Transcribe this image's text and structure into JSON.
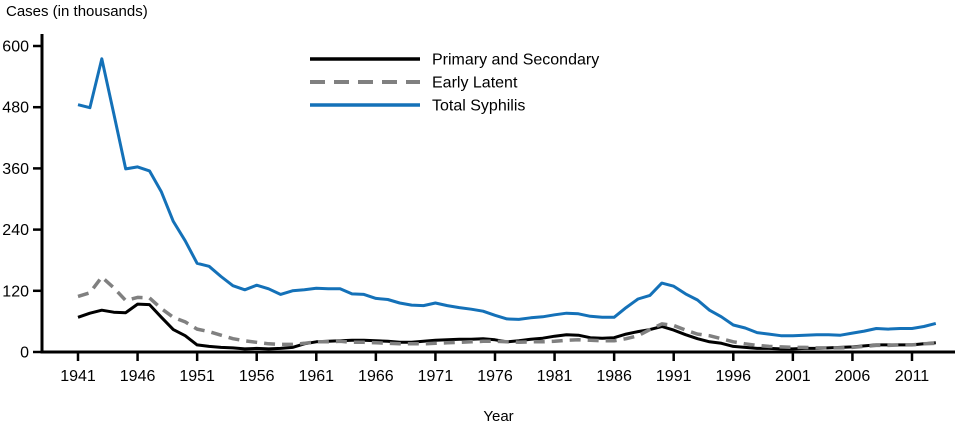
{
  "chart_data": {
    "type": "line",
    "title": "Cases (in thousands)",
    "xlabel": "Year",
    "ylabel": "Cases (in thousands)",
    "grid": false,
    "legend_position": "top-center",
    "x_start": 1941,
    "x_end": 2013,
    "x_ticks": [
      1941,
      1946,
      1951,
      1956,
      1961,
      1966,
      1971,
      1976,
      1981,
      1986,
      1991,
      1996,
      2001,
      2006,
      2011
    ],
    "y_ticks": [
      0,
      120,
      240,
      360,
      480,
      600
    ],
    "ylim": [
      0,
      600
    ],
    "colors": {
      "primary_secondary": "#000000",
      "early_latent": "#808080",
      "total": "#1471b8",
      "axis": "#000000"
    },
    "series": [
      {
        "name": "Primary and Secondary",
        "color_key": "primary_secondary",
        "style": "solid",
        "values": [
          68,
          76,
          82,
          78,
          77,
          94,
          93,
          68,
          44,
          32,
          14,
          11,
          9,
          8,
          6,
          7,
          6,
          7,
          9,
          16,
          20,
          21,
          22,
          23,
          23,
          22,
          21,
          19,
          19,
          21,
          23,
          24,
          25,
          25,
          26,
          24,
          20,
          22,
          25,
          27,
          31,
          34,
          33,
          28,
          27,
          28,
          35,
          40,
          44,
          50,
          43,
          34,
          26,
          20,
          17,
          11,
          9,
          7,
          7,
          6,
          6,
          7,
          7,
          8,
          9,
          10,
          12,
          14,
          14,
          14,
          14,
          16,
          18
        ]
      },
      {
        "name": "Early Latent",
        "color_key": "early_latent",
        "style": "dashed",
        "values": [
          109,
          116,
          147,
          126,
          101,
          107,
          106,
          85,
          68,
          59,
          45,
          40,
          33,
          26,
          22,
          19,
          16,
          15,
          15,
          17,
          20,
          20,
          21,
          19,
          19,
          18,
          17,
          16,
          16,
          16,
          17,
          18,
          19,
          20,
          21,
          21,
          20,
          19,
          20,
          20,
          21,
          23,
          24,
          23,
          22,
          22,
          26,
          32,
          44,
          55,
          52,
          43,
          35,
          32,
          26,
          20,
          16,
          13,
          11,
          10,
          9,
          9,
          8,
          8,
          8,
          9,
          11,
          13,
          13,
          14,
          14,
          16,
          17
        ]
      },
      {
        "name": "Total Syphilis",
        "color_key": "total",
        "style": "solid",
        "values": [
          485,
          479,
          575,
          468,
          359,
          363,
          355,
          314,
          256,
          218,
          174,
          168,
          148,
          130,
          122,
          131,
          124,
          113,
          120,
          122,
          125,
          124,
          124,
          114,
          113,
          105,
          103,
          96,
          92,
          91,
          96,
          91,
          87,
          84,
          80,
          72,
          65,
          64,
          67,
          69,
          73,
          76,
          75,
          70,
          68,
          68,
          87,
          104,
          111,
          135,
          129,
          114,
          102,
          82,
          69,
          53,
          47,
          38,
          35,
          32,
          32,
          33,
          34,
          34,
          33,
          37,
          41,
          46,
          45,
          46,
          46,
          50,
          56
        ]
      }
    ]
  }
}
